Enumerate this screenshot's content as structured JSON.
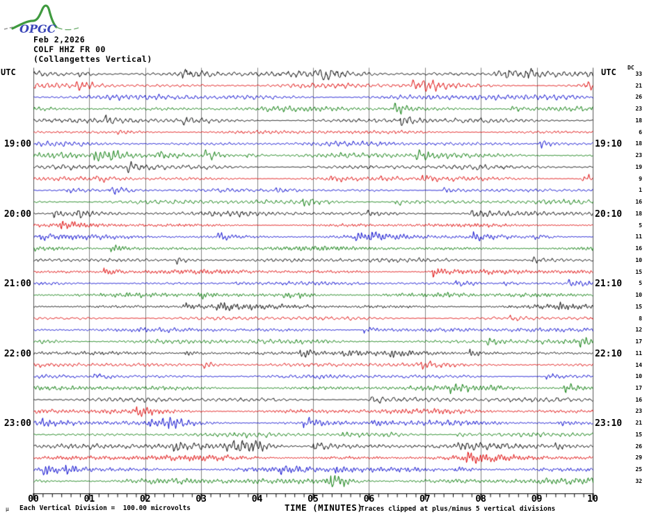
{
  "logo": {
    "text": "OPGC",
    "text_color": "#3a46b8",
    "curve_color": "#3f9a3f"
  },
  "header": {
    "date": "Feb 2,2026",
    "station_line": "COLF HHZ FR 00",
    "station_name": "(Collangettes Vertical)"
  },
  "axis": {
    "utc_left": "UTC",
    "utc_right": "UTC",
    "dc_header": "DC",
    "x_title": "TIME (MINUTES)",
    "x_tick_labels": [
      "00",
      "01",
      "02",
      "03",
      "04",
      "05",
      "06",
      "07",
      "08",
      "09",
      "10"
    ]
  },
  "footer": {
    "micro_mark": "μ",
    "scale_note": "Each Vertical Division =  100.00 microvolts",
    "clip_note": "Traces clipped at plus/minus 5 vertical divisions"
  },
  "chart_data": {
    "type": "line",
    "title": "COLF HHZ FR 00 (Collangettes Vertical) helicorder for Feb 2,2026",
    "xlabel": "TIME (MINUTES)",
    "x_range_minutes": [
      0,
      10
    ],
    "minutes_per_row": 10,
    "grid": true,
    "grid_color": "#808080",
    "border_color": "#555555",
    "clip_divisions": 5,
    "vertical_division_microvolts": 100.0,
    "colors": {
      "black": "#000000",
      "red": "#dd0000",
      "blue": "#0000cc",
      "green": "#007700"
    },
    "left_time_labels": [
      {
        "row": 6,
        "label": "19:00"
      },
      {
        "row": 12,
        "label": "20:00"
      },
      {
        "row": 18,
        "label": "21:00"
      },
      {
        "row": 24,
        "label": "22:00"
      },
      {
        "row": 30,
        "label": "23:00"
      }
    ],
    "right_time_labels": [
      {
        "row": 6,
        "label": "19:10"
      },
      {
        "row": 12,
        "label": "20:10"
      },
      {
        "row": 18,
        "label": "21:10"
      },
      {
        "row": 24,
        "label": "22:10"
      },
      {
        "row": 30,
        "label": "23:10"
      }
    ],
    "traces": [
      {
        "row": 0,
        "start": "18:00",
        "end": "18:10",
        "color": "black",
        "dc": 33
      },
      {
        "row": 1,
        "start": "18:10",
        "end": "18:20",
        "color": "red",
        "dc": 21
      },
      {
        "row": 2,
        "start": "18:20",
        "end": "18:30",
        "color": "blue",
        "dc": 26
      },
      {
        "row": 3,
        "start": "18:30",
        "end": "18:40",
        "color": "green",
        "dc": 23
      },
      {
        "row": 4,
        "start": "18:40",
        "end": "18:50",
        "color": "black",
        "dc": 18
      },
      {
        "row": 5,
        "start": "18:50",
        "end": "19:00",
        "color": "red",
        "dc": 6
      },
      {
        "row": 6,
        "start": "19:00",
        "end": "19:10",
        "color": "blue",
        "dc": 18
      },
      {
        "row": 7,
        "start": "19:10",
        "end": "19:20",
        "color": "green",
        "dc": 23
      },
      {
        "row": 8,
        "start": "19:20",
        "end": "19:30",
        "color": "black",
        "dc": 19
      },
      {
        "row": 9,
        "start": "19:30",
        "end": "19:40",
        "color": "red",
        "dc": 9
      },
      {
        "row": 10,
        "start": "19:40",
        "end": "19:50",
        "color": "blue",
        "dc": 1
      },
      {
        "row": 11,
        "start": "19:50",
        "end": "20:00",
        "color": "green",
        "dc": 16
      },
      {
        "row": 12,
        "start": "20:00",
        "end": "20:10",
        "color": "black",
        "dc": 18
      },
      {
        "row": 13,
        "start": "20:10",
        "end": "20:20",
        "color": "red",
        "dc": 5
      },
      {
        "row": 14,
        "start": "20:20",
        "end": "20:30",
        "color": "blue",
        "dc": 11
      },
      {
        "row": 15,
        "start": "20:30",
        "end": "20:40",
        "color": "green",
        "dc": 16
      },
      {
        "row": 16,
        "start": "20:40",
        "end": "20:50",
        "color": "black",
        "dc": 10
      },
      {
        "row": 17,
        "start": "20:50",
        "end": "21:00",
        "color": "red",
        "dc": 15
      },
      {
        "row": 18,
        "start": "21:00",
        "end": "21:10",
        "color": "blue",
        "dc": 5
      },
      {
        "row": 19,
        "start": "21:10",
        "end": "21:20",
        "color": "green",
        "dc": 10
      },
      {
        "row": 20,
        "start": "21:20",
        "end": "21:30",
        "color": "black",
        "dc": 15
      },
      {
        "row": 21,
        "start": "21:30",
        "end": "21:40",
        "color": "red",
        "dc": 8
      },
      {
        "row": 22,
        "start": "21:40",
        "end": "21:50",
        "color": "blue",
        "dc": 12
      },
      {
        "row": 23,
        "start": "21:50",
        "end": "22:00",
        "color": "green",
        "dc": 17
      },
      {
        "row": 24,
        "start": "22:00",
        "end": "22:10",
        "color": "black",
        "dc": 11
      },
      {
        "row": 25,
        "start": "22:10",
        "end": "22:20",
        "color": "red",
        "dc": 14
      },
      {
        "row": 26,
        "start": "22:20",
        "end": "22:30",
        "color": "blue",
        "dc": 10
      },
      {
        "row": 27,
        "start": "22:30",
        "end": "22:40",
        "color": "green",
        "dc": 17
      },
      {
        "row": 28,
        "start": "22:40",
        "end": "22:50",
        "color": "black",
        "dc": 16
      },
      {
        "row": 29,
        "start": "22:50",
        "end": "23:00",
        "color": "red",
        "dc": 23
      },
      {
        "row": 30,
        "start": "23:00",
        "end": "23:10",
        "color": "blue",
        "dc": 21
      },
      {
        "row": 31,
        "start": "23:10",
        "end": "23:20",
        "color": "green",
        "dc": 15
      },
      {
        "row": 32,
        "start": "23:20",
        "end": "23:30",
        "color": "black",
        "dc": 26
      },
      {
        "row": 33,
        "start": "23:30",
        "end": "23:40",
        "color": "red",
        "dc": 29
      },
      {
        "row": 34,
        "start": "23:40",
        "end": "23:50",
        "color": "blue",
        "dc": 25
      },
      {
        "row": 35,
        "start": "23:50",
        "end": "24:00",
        "color": "green",
        "dc": 32
      }
    ]
  }
}
